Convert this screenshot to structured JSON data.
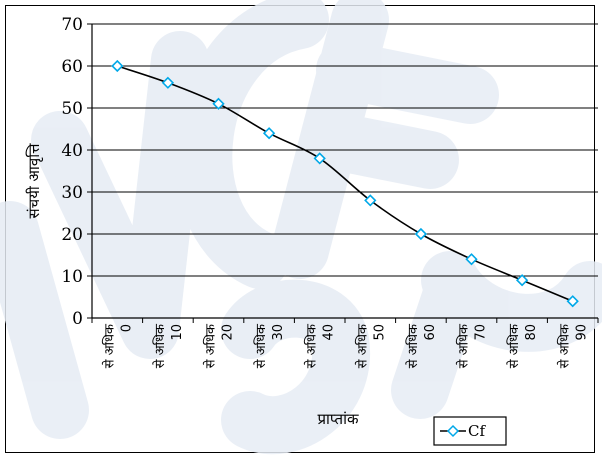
{
  "chart_data": {
    "type": "line",
    "title": "",
    "xlabel": "प्राप्तांक",
    "ylabel": "संचयी आवृत्ति",
    "ylim": [
      0,
      70
    ],
    "yticks": [
      0,
      10,
      20,
      30,
      40,
      50,
      60,
      70
    ],
    "grid": true,
    "legend": "bottom-right",
    "categories": [
      {
        "word": "से अधिक",
        "num": "0"
      },
      {
        "word": "से अधिक",
        "num": "10"
      },
      {
        "word": "से अधिक",
        "num": "20"
      },
      {
        "word": "से अधिक",
        "num": "30"
      },
      {
        "word": "से अधिक",
        "num": "40"
      },
      {
        "word": "से अधिक",
        "num": "50"
      },
      {
        "word": "से अधिक",
        "num": "60"
      },
      {
        "word": "से अधिक",
        "num": "70"
      },
      {
        "word": "से अधिक",
        "num": "80"
      },
      {
        "word": "से अधिक",
        "num": "90"
      }
    ],
    "series": [
      {
        "name": "Cf",
        "color": "#00a8e8",
        "values": [
          60,
          56,
          51,
          44,
          38,
          28,
          20,
          14,
          9,
          4
        ]
      }
    ]
  }
}
